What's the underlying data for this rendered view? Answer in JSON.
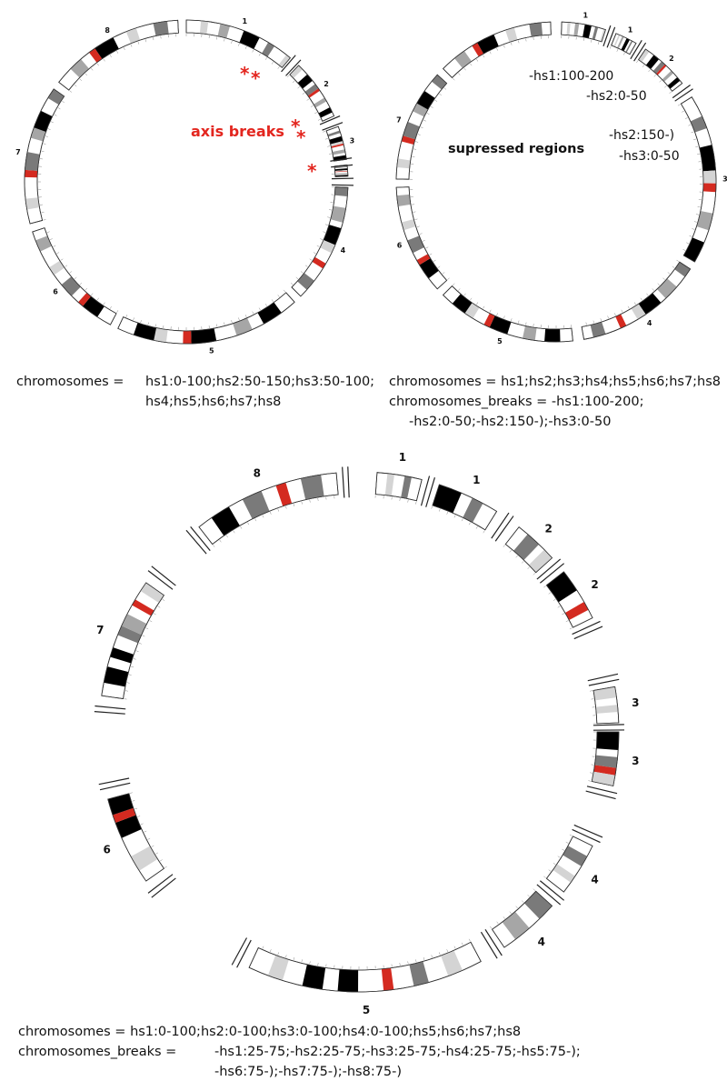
{
  "colors": {
    "band_black": "#000000",
    "band_dark": "#7a7a7a",
    "band_mid": "#a6a6a6",
    "band_light": "#d4d4d4",
    "band_white": "#ffffff",
    "centromere": "#d42a20",
    "annotation_red": "#e3261f",
    "outline": "#333333"
  },
  "panels": [
    {
      "id": "axis-breaks",
      "annotation": "axis breaks",
      "break_marker": "*",
      "chromosome_labels": [
        "1",
        "2",
        "3",
        "4",
        "5",
        "6",
        "7",
        "8"
      ],
      "caption_key": "chromosomes =",
      "caption_lines": [
        "hs1:0-100;hs2:50-150;hs3:50-100;",
        "hs4;hs5;hs6;hs7;hs8"
      ]
    },
    {
      "id": "suppressed-regions",
      "annotation": "supressed regions",
      "region_labels": [
        "-hs1:100-200",
        "-hs2:0-50",
        "-hs2:150-)",
        "-hs3:0-50"
      ],
      "chromosome_labels": [
        "1",
        "1",
        "2",
        "3",
        "4",
        "5",
        "6",
        "7",
        "8"
      ],
      "caption_lines": [
        "chromosomes = hs1;hs2;hs3;hs4;hs5;hs6;hs7;hs8",
        "chromosomes_breaks = -hs1:100-200;",
        "-hs2:0-50;-hs2:150-);-hs3:0-50"
      ]
    },
    {
      "id": "split-chromosomes",
      "chromosome_labels": [
        "1",
        "1",
        "2",
        "2",
        "3",
        "3",
        "4",
        "4",
        "5",
        "6",
        "7",
        "8"
      ],
      "caption_line1": "chromosomes = hs1:0-100;hs2:0-100;hs3:0-100;hs4:0-100;hs5;hs6;hs7;hs8",
      "caption_key2": "chromosomes_breaks =",
      "caption_lines2": [
        "-hs1:25-75;-hs2:25-75;-hs3:25-75;-hs4:25-75;-hs5:75-);",
        "-hs6:75-);-hs7:75-);-hs8:75-)"
      ]
    }
  ]
}
